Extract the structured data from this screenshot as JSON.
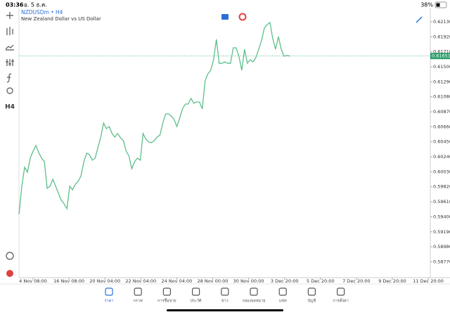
{
  "status_bar": {
    "time": "03:36",
    "date": "อ. 5 ธ.ค.",
    "battery": "38%"
  },
  "toolbar": {
    "timeframe": "H4"
  },
  "chart_data": {
    "type": "line",
    "symbol": "NZDUSDm • H4",
    "description": "New Zealand Dollar vs US Dollar",
    "x_labels": [
      "4 Nov 08:00",
      "16 Nov 08:00",
      "20 Nov 04:00",
      "22 Nov 04:00",
      "24 Nov 04:00",
      "28 Nov 00:00",
      "30 Nov 00:00",
      "3 Dec 20:00",
      "5 Dec 20:00",
      "7 Dec 20:00",
      "9 Dec 20:00",
      "11 Dec 20:00"
    ],
    "series": [
      {
        "color": "#5cbf8a",
        "values": [
          0.59434,
          0.59827,
          0.60093,
          0.60024,
          0.60221,
          0.60319,
          0.60398,
          0.603,
          0.60221,
          0.60172,
          0.59798,
          0.59827,
          0.59926,
          0.59827,
          0.59729,
          0.59631,
          0.59581,
          0.59513,
          0.59827,
          0.59778,
          0.59857,
          0.59896,
          0.59975,
          0.60172,
          0.6029,
          0.6027,
          0.60192,
          0.60221,
          0.60369,
          0.60516,
          0.60713,
          0.60634,
          0.60664,
          0.60565,
          0.60516,
          0.60565,
          0.60506,
          0.60467,
          0.60319,
          0.60251,
          0.60073,
          0.60172,
          0.60221,
          0.60192,
          0.60565,
          0.60487,
          0.60447,
          0.60438,
          0.60467,
          0.60516,
          0.60546,
          0.60713,
          0.60841,
          0.60841,
          0.60811,
          0.60762,
          0.60664,
          0.60782,
          0.6091,
          0.60979,
          0.60979,
          0.61057,
          0.60989,
          0.61008,
          0.61008,
          0.6091,
          0.61303,
          0.61402,
          0.61451,
          0.61599,
          0.61884,
          0.61549,
          0.61549,
          0.61569,
          0.61549,
          0.61549,
          0.61766,
          0.61766,
          0.61648,
          0.61451,
          0.61746,
          0.61549,
          0.61599,
          0.61569,
          0.61628,
          0.61746,
          0.61864,
          0.62041,
          0.62091,
          0.6212,
          0.61894,
          0.61746,
          0.61923,
          0.61746,
          0.61648,
          0.61658,
          0.61651
        ]
      }
    ],
    "current_price": 0.61651,
    "ylim": [
      0.58548,
      0.62258
    ],
    "yticks": [
      {
        "value": 0.6213,
        "label": "0.62130"
      },
      {
        "value": 0.6192,
        "label": "0.61920"
      },
      {
        "value": 0.6171,
        "label": "0.61710"
      },
      {
        "value": 0.615,
        "label": "0.61500"
      },
      {
        "value": 0.6129,
        "label": "0.61290"
      },
      {
        "value": 0.6108,
        "label": "0.61080"
      },
      {
        "value": 0.6087,
        "label": "0.60870"
      },
      {
        "value": 0.6066,
        "label": "0.60660"
      },
      {
        "value": 0.6045,
        "label": "0.60450"
      },
      {
        "value": 0.6024,
        "label": "0.60240"
      },
      {
        "value": 0.6003,
        "label": "0.60030"
      },
      {
        "value": 0.5982,
        "label": "0.59820"
      },
      {
        "value": 0.5961,
        "label": "0.59610"
      },
      {
        "value": 0.594,
        "label": "0.59400"
      },
      {
        "value": 0.5919,
        "label": "0.59190"
      },
      {
        "value": 0.5898,
        "label": "0.58980"
      },
      {
        "value": 0.5877,
        "label": "0.58770"
      }
    ],
    "grid": false
  },
  "tab_bar": {
    "tabs": [
      "ราคา",
      "กราฟ",
      "การซื้อขาย",
      "ประวัติ",
      "ข่าว",
      "กล่องจดหมาย",
      "แชท",
      "บัญชี",
      "การตั้งค่า"
    ],
    "active": 0
  }
}
